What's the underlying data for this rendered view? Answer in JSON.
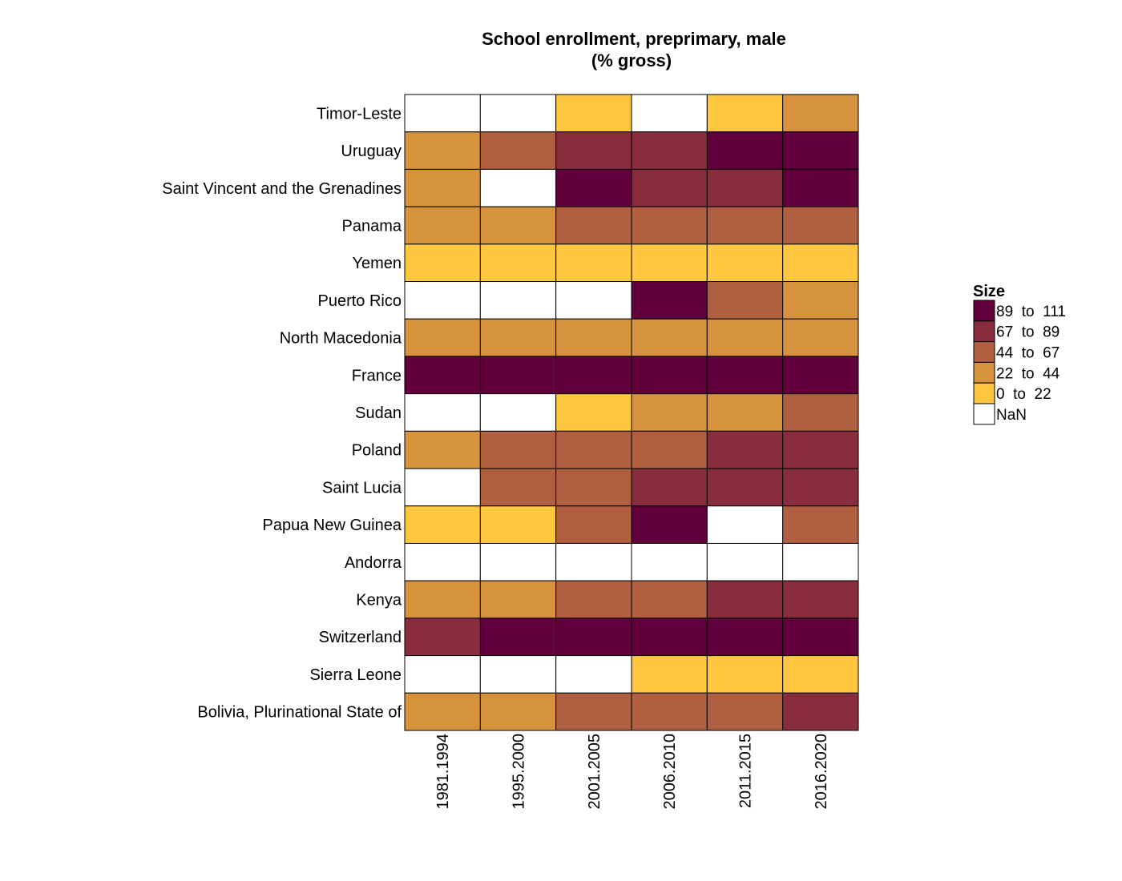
{
  "chart_data": {
    "type": "heatmap",
    "title_lines": [
      "School enrollment, preprimary, male",
      "(% gross)"
    ],
    "columns": [
      "1981.1994",
      "1995.2000",
      "2001.2005",
      "2006.2010",
      "2011.2015",
      "2016.2020"
    ],
    "rows": [
      "Timor-Leste",
      "Uruguay",
      "Saint Vincent and the Grenadines",
      "Panama",
      "Yemen",
      "Puerto Rico",
      "North Macedonia",
      "France",
      "Sudan",
      "Poland",
      "Saint Lucia",
      "Papua New Guinea",
      "Andorra",
      "Kenya",
      "Switzerland",
      "Sierra Leone",
      "Bolivia, Plurinational State of"
    ],
    "cell_bins": [
      [
        null,
        null,
        0,
        null,
        0,
        1
      ],
      [
        1,
        2,
        3,
        3,
        4,
        4
      ],
      [
        1,
        null,
        4,
        3,
        3,
        4
      ],
      [
        1,
        1,
        2,
        2,
        2,
        2
      ],
      [
        0,
        0,
        0,
        0,
        0,
        0
      ],
      [
        null,
        null,
        null,
        4,
        2,
        1
      ],
      [
        1,
        1,
        1,
        1,
        1,
        1
      ],
      [
        4,
        4,
        4,
        4,
        4,
        4
      ],
      [
        null,
        null,
        0,
        1,
        1,
        2
      ],
      [
        1,
        2,
        2,
        2,
        3,
        3
      ],
      [
        null,
        2,
        2,
        3,
        3,
        3
      ],
      [
        0,
        0,
        2,
        4,
        null,
        2
      ],
      [
        null,
        null,
        null,
        null,
        null,
        null
      ],
      [
        1,
        1,
        2,
        2,
        3,
        3
      ],
      [
        3,
        4,
        4,
        4,
        4,
        4
      ],
      [
        null,
        null,
        null,
        0,
        0,
        0
      ],
      [
        1,
        1,
        2,
        2,
        2,
        3
      ]
    ],
    "legend": {
      "title": "Size",
      "bins": [
        {
          "label": "89  to  111",
          "color": "#62003d"
        },
        {
          "label": "67  to  89",
          "color": "#872d3e"
        },
        {
          "label": "44  to  67",
          "color": "#b06040"
        },
        {
          "label": "22  to  44",
          "color": "#d7923e"
        },
        {
          "label": "0  to  22",
          "color": "#ffc640"
        },
        {
          "label": "NaN",
          "color": "#ffffff"
        }
      ]
    },
    "bin_colors": [
      "#ffc640",
      "#d7923e",
      "#b06040",
      "#872d3e",
      "#62003d"
    ],
    "nan_color": "#ffffff"
  }
}
